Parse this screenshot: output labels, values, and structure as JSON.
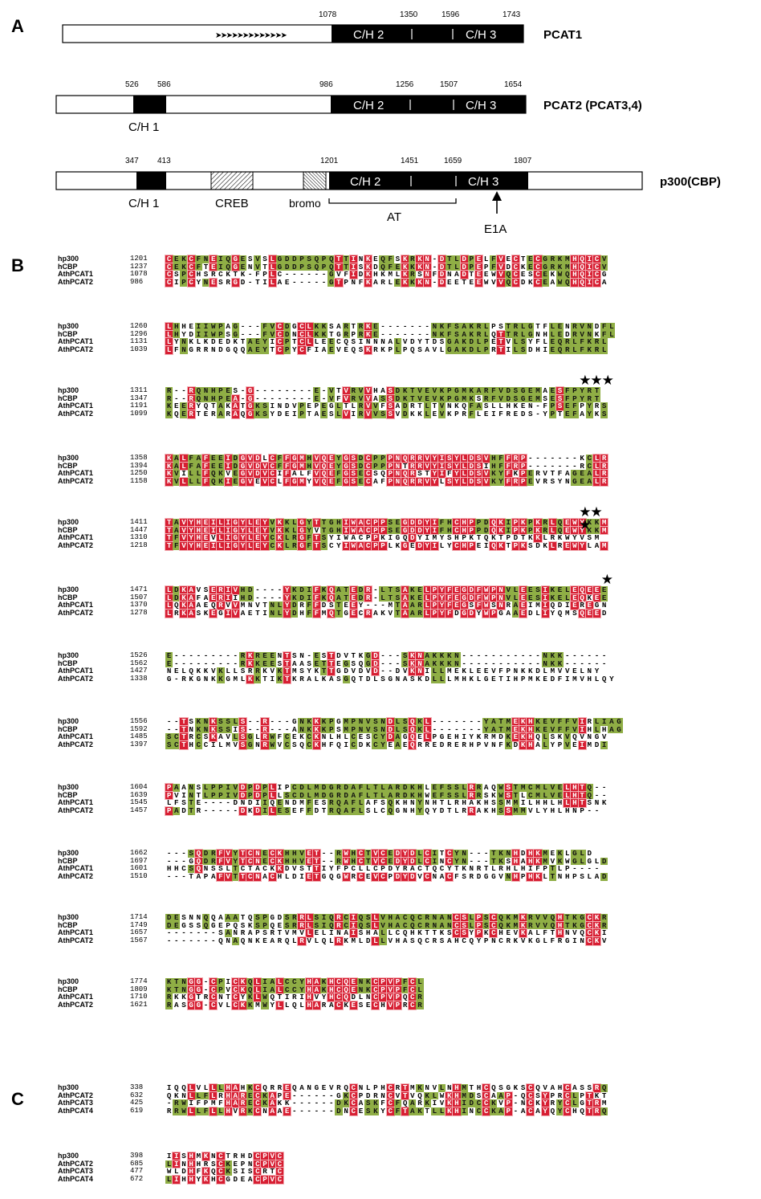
{
  "panels": {
    "a": "A",
    "b": "B",
    "c": "C"
  },
  "colors": {
    "identical": "#d71f33",
    "similar": "#8fae45",
    "domain": "#000000",
    "outline": "#000000"
  },
  "diagram": {
    "pcat1": {
      "name": "PCAT1",
      "ticks": [
        "1078",
        "1350",
        "1596",
        "1743"
      ],
      "domains": [
        "C/H 2",
        "C/H 3"
      ],
      "arrows": "➤➤➤➤➤➤➤➤➤➤➤➤➤"
    },
    "pcat2": {
      "name": "PCAT2 (PCAT3,4)",
      "ticks": [
        "526",
        "586",
        "986",
        "1256",
        "1507",
        "1654"
      ],
      "domains": [
        "C/H 2",
        "C/H 3"
      ],
      "below_label": "C/H 1"
    },
    "p300": {
      "name": "p300(CBP)",
      "ticks": [
        "347",
        "413",
        "1201",
        "1451",
        "1659",
        "1807"
      ],
      "domains": [
        "C/H 2",
        "C/H 3"
      ],
      "below_labels": {
        "ch1": "C/H 1",
        "creb": "CREB",
        "bromo": "bromo",
        "at": "AT",
        "e1a": "E1A"
      }
    }
  },
  "alignment_b": [
    {
      "rows": [
        {
          "name": "hp300",
          "start": "1201",
          "seq": "CEKCFNEIQGESVSLGDDPSQPQTTINKEQFSKRKN-DTLDPELFVECTECGRKMHQICV"
        },
        {
          "name": "hCBP",
          "start": "1237",
          "seq": "CEKCFTEIQGENVTLGDDPSQPQTTISKDQFEKKKN-DTLDPEPFVDCKECGRKMHQICV"
        },
        {
          "name": "AthPCAT1",
          "start": "1078",
          "seq": "CSPCHSRCKTK-FPLC------GVFIDKHKMLKRSNFDNADTEEWVQCESCEKWQHQICG"
        },
        {
          "name": "AthPCAT2",
          "start": "986",
          "seq": "CIPCYNESRGD-TILAE-----GTPNFKARLEKKKN-DEETEEWVVQCDKCEAWQHQICA"
        }
      ]
    },
    {
      "rows": [
        {
          "name": "hp300",
          "start": "1260",
          "seq": "LHHEIIWPAG---FVCDGCLKKSARTRKE-------NKFSAKRLPSTRLGTFLENRVNDFL"
        },
        {
          "name": "hCBP",
          "start": "1296",
          "seq": "LHYDIIWPSG---FVCDNCLKKTGRPRKE-------NKFSAKRLQTTRLGNHLEDRVNKFL"
        },
        {
          "name": "AthPCAT1",
          "start": "1131",
          "seq": "LYNKLKDEDKTAEYICPTCLLEECQSINNNALVDYTDSGAKDLPETVLSYFLEQRLFKRL"
        },
        {
          "name": "AthPCAT2",
          "start": "1039",
          "seq": "LFNGRRNDGQQAEYTCPYCFIAEVEQSKRKPLPQSAVLGAKDLPRTILSDHIEQRLFKRL"
        }
      ]
    },
    {
      "stars": "★★★",
      "rows": [
        {
          "name": "hp300",
          "start": "1311",
          "seq": "R--RQNHPES-G--------E-VTVRVVHASDKTVEVKPGMKARFVDSGEMAESFPYRT"
        },
        {
          "name": "hCBP",
          "start": "1347",
          "seq": "R--RQNHPEA-G--------E-VFVRVVASSDKTVEVKPGMKSRFVDSGEMSESFPYRT"
        },
        {
          "name": "AthPCAT1",
          "start": "1191",
          "seq": "KEERYQTAKATGKSINDVPEPEGLTLRVVFSADRTLTVNKQFASLLHKEN-FPSEFPYRS"
        },
        {
          "name": "AthPCAT2",
          "start": "1099",
          "seq": "KQERTERARAQGKSYDEIPTAESLVIRVVSSVDKKLEVKPRFLEIFREDS-YPTEFAYKS"
        }
      ]
    },
    {
      "rows": [
        {
          "name": "hp300",
          "start": "1358",
          "seq": "KALFAFEEIDGVDLCFFGMHVQEYGSDCPPPNQRRVYISYLDSVHFFRP-------KCLR"
        },
        {
          "name": "hCBP",
          "start": "1394",
          "seq": "KALFAFEEIDGVDVCFFGMHVQEYGSDCPPPNTRRVYISYLDSIHFFRP-------RCLR"
        },
        {
          "name": "AthPCAT1",
          "start": "1250",
          "seq": "KVILLFQKVEGVDVCIFALFVQEFGSECSQPNQRSTYIFYLDSVKYFKPERVTFAGEALR"
        },
        {
          "name": "AthPCAT2",
          "start": "1158",
          "seq": "KVLLLFQKIEGVEVCLFGMYVQEFGSECAFPNQRRVYLSYLDSVKYFRPEVRSYNGEALR"
        }
      ]
    },
    {
      "stars": "★★ ★",
      "rows": [
        {
          "name": "hp300",
          "start": "1411",
          "seq": "TAVYHEILIGYLEYVKKLGYTTGHIWACPPSEGDDYIFHCHPPDQKIPKPKRLQEWYKKM"
        },
        {
          "name": "hCBP",
          "start": "1447",
          "seq": "TAVYHEILIGYLEYVKKLGYVTGHIWACPPSEGDDYIFHCHPPDQKIPKPKRLQEWYKKM"
        },
        {
          "name": "AthPCAT1",
          "start": "1310",
          "seq": "TFVYHEVLIGYLEYCKLRGFTSYIWACPPKIGQDYIMYSHPKTQKTPDTKKLRKWYVSM"
        },
        {
          "name": "AthPCAT2",
          "start": "1218",
          "seq": "TFVYHEILIGYLEYCKLRGFTSCYIWACPPLKGEDYILYCHPEIQKTPKSDKLREWYLAM"
        }
      ]
    },
    {
      "stars": "★",
      "rows": [
        {
          "name": "hp300",
          "start": "1471",
          "seq": "LDKAVSERIVHD----YKDIFKQATEDR-LTSAKELPYFEGDFWPNVLEESIKELEQEEE"
        },
        {
          "name": "hCBP",
          "start": "1507",
          "seq": "LDKAFAERIIHD----YKDIFKQATEDR-LTSAKELPYFEGDFWPNVLEESIKELEQKEE"
        },
        {
          "name": "AthPCAT1",
          "start": "1370",
          "seq": "LQKAAEQRVVMNVTNLYDRFFDSTEEY---MTAARLPYFEGSFWSNRAEIMIQDIEREGN"
        },
        {
          "name": "AthPCAT2",
          "start": "1278",
          "seq": "LRKASKEGIVAETINLYDHFFMQTGECRAKVTAARLPYFDGDYWPGAAEDLIYQMSQEED"
        }
      ]
    },
    {
      "rows": [
        {
          "name": "hp300",
          "start": "1526",
          "seq": "E---------RKREENTSN-ESTDVTKGD---SKNAKKKN-----------NKK------"
        },
        {
          "name": "hCBP",
          "start": "1562",
          "seq": "E---------RKKEESTAASETTEGSQGD---SKNAKKKN-----------NKK------"
        },
        {
          "name": "AthPCAT1",
          "start": "1427",
          "seq": "NELQKKVKLLSRRKVKTMSYKTTGDVDVD--DVKNILLMEKLEEVFPNKKDLMVVELNY"
        },
        {
          "name": "AthPCAT2",
          "start": "1338",
          "seq": "G-RKGNKKGMLKKTIKTKRALKASGQTDLSGNASKDLLLMHKLGETIHPMKEDFIMVHLQY"
        }
      ]
    },
    {
      "rows": [
        {
          "name": "hp300",
          "start": "1556",
          "seq": "--TSKNKSSLS--R---GNKKKPGMPNVSNDLSQKL-------YATMEKHKEVFFVIRLIAG"
        },
        {
          "name": "hCBP",
          "start": "1592",
          "seq": "--TNKNKSSIS--R---ANKKKPSMPNVSNDLSQKL-------YATMEKHKEVFFVIHLHAG"
        },
        {
          "name": "AthPCAT1",
          "start": "1485",
          "seq": "SCTRCSKAVLSGLRWFCEKCKNLHLCESCYDAGQELPGEHIYKRMDKEKHQLSKVQVNGV"
        },
        {
          "name": "AthPCAT2",
          "start": "1397",
          "seq": "SCTHCCILMVSGNRWVCSQCKHFQICDKCYEAEQRREDRERHPVNFKDKHALYPVEIMDI"
        }
      ]
    },
    {
      "rows": [
        {
          "name": "hp300",
          "start": "1604",
          "seq": "PAANSLPPIVDPDPLIPCDLMDGRDAFLTLARDKHLEFSSLRRAQWSTMCMLVELHTQ--"
        },
        {
          "name": "hCBP",
          "start": "1639",
          "seq": "PVINTLPPIVDPDPLLSCDLMDGRDAFLTLARDKHWEFSSLRRSKWSTLCMLVELHTQ--"
        },
        {
          "name": "AthPCAT1",
          "start": "1545",
          "seq": "LFSTE----DNDIIQENDMFESRQAFLAFSQKHNYNHTLRHAKHSSMMILHHLHLHTSNK"
        },
        {
          "name": "AthPCAT2",
          "start": "1457",
          "seq": "PADTR-----DKDILESEFFDTRQAFLSLCQGNHYQYDTLRRAKHSSMMVLYHLHNP--"
        }
      ]
    },
    {
      "rows": [
        {
          "name": "hp300",
          "start": "1662",
          "seq": "---SQDRFVYTCNECKHHVET--RWHCTVCEDYDLCITCYN---TKNHDHKMEKLGLD"
        },
        {
          "name": "hCBP",
          "start": "1697",
          "seq": "---GQDRFVYTCNECKHHVET--RWHCTVCEDYDLCINCYN---TKSHAHKMVKWGLGLD"
        },
        {
          "name": "AthPCAT1",
          "start": "1601",
          "seq": "HHCSQNSSLTCTACKKDVSTTIYFPCLLCPDYRACTQCYTKNRTLRHLHIFPTLP----"
        },
        {
          "name": "AthPCAT2",
          "start": "1510",
          "seq": "---TAPAFVTTCNACHLDIETGQGWRCEVCPDYDVCNACFSRDGGVNHPHKLTNHPSLAD"
        }
      ]
    },
    {
      "rows": [
        {
          "name": "hp300",
          "start": "1714",
          "seq": "DESNNQQAAATQSPGDSRRLSIQRCIQSLVHACQCRNANCSLPSCQKMKRVVQHTKGCKR"
        },
        {
          "name": "hCBP",
          "start": "1749",
          "seq": "DEGSSQGEPQSKSPQESRRLSIQRCIQSLVHACQCRNANCSLPSCQKMKRVVQHTKGCKR"
        },
        {
          "name": "AthPCAT1",
          "start": "1657",
          "seq": "-------SANRAPSRTVMVLELINAISHALLCQHKTTKSCSYPKCHEVKALFTHNVQCKI"
        },
        {
          "name": "AthPCAT2",
          "start": "1567",
          "seq": "-------QNAQNKEARQLRVLQLRKMLDLLVHASQCRSAHCQYPNCRKVKGLFRGINCKV"
        }
      ]
    },
    {
      "rows": [
        {
          "name": "hp300",
          "start": "1774",
          "seq": "KTNGG-CPICKQLIALCCYHAKHCQENKCPVPFCL"
        },
        {
          "name": "hCBP",
          "start": "1809",
          "seq": "KTNGG-CPVCKQLIALCCYHAKHCQENKCPVPFCL"
        },
        {
          "name": "AthPCAT1",
          "start": "1710",
          "seq": "RKKGTRCNTCYKLWQTIRIHVYHCQDLNCPVPQCR"
        },
        {
          "name": "AthPCAT2",
          "start": "1621",
          "seq": "RASGG-CVLCKKMWYLLQLHARACKESECHVPRCR"
        }
      ]
    }
  ],
  "alignment_c": [
    {
      "rows": [
        {
          "name": "hp300",
          "start": "338",
          "seq": "IQQLVLLLHAHKCQRREQANGEVRQCNLPHCRTMKNVLNHMTHCQSGKSCQVAHCASSRQ"
        },
        {
          "name": "AthPCAT2",
          "start": "632",
          "seq": "QKNLLFLRHARECKAPE------GKCPDRNCVTVQKLWKHMDSCAAP-QCSYPRCLPTKT"
        },
        {
          "name": "AthPCAT3",
          "start": "425",
          "seq": "-RWIFPMFHARECKAKK------DKCASKFCFQARKIVKHIDCCKVP-NCKYRYCLGTRM"
        },
        {
          "name": "AthPCAT4",
          "start": "619",
          "seq": "RRWLLFLLHVRKCNAAE------DNCESKYCFTAKTLLKHINCCKAP-ACAYQYCHQTRQ"
        }
      ]
    },
    {
      "rows": [
        {
          "name": "hp300",
          "start": "398",
          "seq": "IISHMKNCTRHDCPVC"
        },
        {
          "name": "AthPCAT2",
          "start": "685",
          "seq": "LINHHRSCKEPNCPVC"
        },
        {
          "name": "AthPCAT3",
          "start": "477",
          "seq": "WLDHFKQCKSISCRTC"
        },
        {
          "name": "AthPCAT4",
          "start": "672",
          "seq": "LIHHYKHCGDEACPVC"
        }
      ]
    }
  ]
}
